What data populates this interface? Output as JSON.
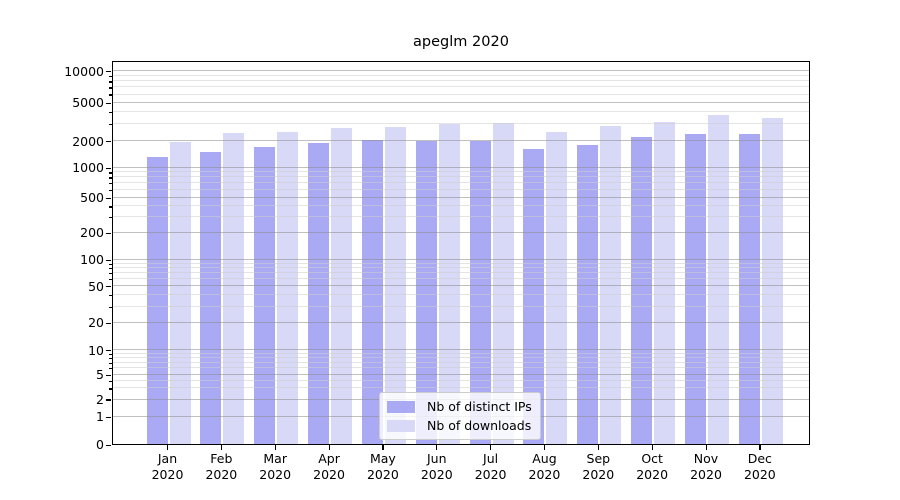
{
  "title": "apeglm 2020",
  "y_axis": {
    "tick_values": [
      0,
      1,
      2,
      5,
      10,
      20,
      50,
      100,
      200,
      500,
      1000,
      2000,
      5000,
      10000
    ],
    "tick_labels": [
      "0",
      "1",
      "2",
      "5",
      "10",
      "20",
      "50",
      "100",
      "200",
      "500",
      "1000",
      "2000",
      "5000",
      "10000"
    ]
  },
  "x_axis": {
    "months": [
      "Jan",
      "Feb",
      "Mar",
      "Apr",
      "May",
      "Jun",
      "Jul",
      "Aug",
      "Sep",
      "Oct",
      "Nov",
      "Dec"
    ],
    "year": "2020"
  },
  "legend": {
    "items": [
      {
        "label": "Nb of distinct IPs",
        "color": "#a9a9f4"
      },
      {
        "label": "Nb of downloads",
        "color": "#d8d8f7"
      }
    ]
  },
  "colors": {
    "distinct_ips_bar": "#a9a9f4",
    "downloads_bar": "#d8d8f7",
    "major_grid": "#bdbdbd",
    "minor_grid": "#e3e3e3",
    "axis": "#000000"
  },
  "chart_data": {
    "type": "bar",
    "title": "apeglm 2020",
    "categories": [
      "Jan 2020",
      "Feb 2020",
      "Mar 2020",
      "Apr 2020",
      "May 2020",
      "Jun 2020",
      "Jul 2020",
      "Aug 2020",
      "Sep 2020",
      "Oct 2020",
      "Nov 2020",
      "Dec 2020"
    ],
    "series": [
      {
        "name": "Nb of distinct IPs",
        "color": "#a9a9f4",
        "values": [
          1300,
          1480,
          1700,
          1900,
          2050,
          2000,
          2000,
          1600,
          1800,
          2200,
          2350,
          2350
        ]
      },
      {
        "name": "Nb of downloads",
        "color": "#d8d8f7",
        "values": [
          1950,
          2400,
          2450,
          2700,
          2750,
          3000,
          3050,
          2450,
          2850,
          3150,
          3700,
          3450
        ]
      }
    ],
    "xlabel": "",
    "ylabel": "",
    "yscale": "log-like with ticks 0,1,2,5,10,20,50,100,200,500,1000,2000,5000,10000",
    "ylim": [
      0,
      10000
    ],
    "grid": "horizontal major and minor gridlines, drawn over bars",
    "legend_position": "inside bottom-center"
  }
}
